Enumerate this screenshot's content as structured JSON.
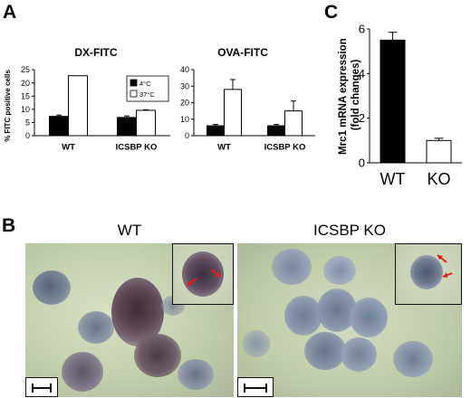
{
  "panel_labels": {
    "a": "A",
    "b": "B",
    "c": "C"
  },
  "legend": {
    "cold": "4°C",
    "warm": "37°C"
  },
  "panel_b": {
    "left_title": "WT",
    "right_title": "ICSBP KO"
  },
  "chart_data": [
    {
      "type": "bar",
      "panel": "A",
      "title": "DX-FITC",
      "ylabel": "% FITC positive cells",
      "ylim": [
        0,
        25
      ],
      "yticks": [
        "0",
        "5",
        "10",
        "15",
        "20",
        "25"
      ],
      "categories": [
        "WT",
        "ICSBP KO"
      ],
      "series": [
        {
          "name": "4°C",
          "color": "#000000",
          "values": [
            7.3,
            6.9
          ],
          "errors": [
            0.5,
            0.6
          ]
        },
        {
          "name": "37°C",
          "color": "#ffffff",
          "values": [
            22.7,
            9.6
          ],
          "errors": [
            0,
            0.2
          ]
        }
      ],
      "legend_position": "top-right"
    },
    {
      "type": "bar",
      "panel": "A",
      "title": "OVA-FITC",
      "ylabel": "",
      "ylim": [
        0,
        40
      ],
      "yticks": [
        "0",
        "10",
        "20",
        "30",
        "40"
      ],
      "categories": [
        "WT",
        "ICSBP KO"
      ],
      "series": [
        {
          "name": "4°C",
          "color": "#000000",
          "values": [
            6.0,
            6.0
          ],
          "errors": [
            0.8,
            0.8
          ]
        },
        {
          "name": "37°C",
          "color": "#ffffff",
          "values": [
            28.0,
            15.0
          ],
          "errors": [
            6.0,
            6.0
          ]
        }
      ]
    },
    {
      "type": "bar",
      "panel": "C",
      "title": "",
      "ylabel": "Mrc1 mRNA expression (fold changes)",
      "ylabel_lines": [
        "Mrc1 mRNA expression",
        "(fold changes)"
      ],
      "ylim": [
        0,
        6
      ],
      "yticks": [
        "0",
        "2",
        "4",
        "6"
      ],
      "categories": [
        "WT",
        "KO"
      ],
      "series": [
        {
          "name": "",
          "colors": [
            "#000000",
            "#ffffff"
          ],
          "values": [
            5.5,
            1.0
          ],
          "errors": [
            0.35,
            0.1
          ]
        }
      ]
    }
  ]
}
